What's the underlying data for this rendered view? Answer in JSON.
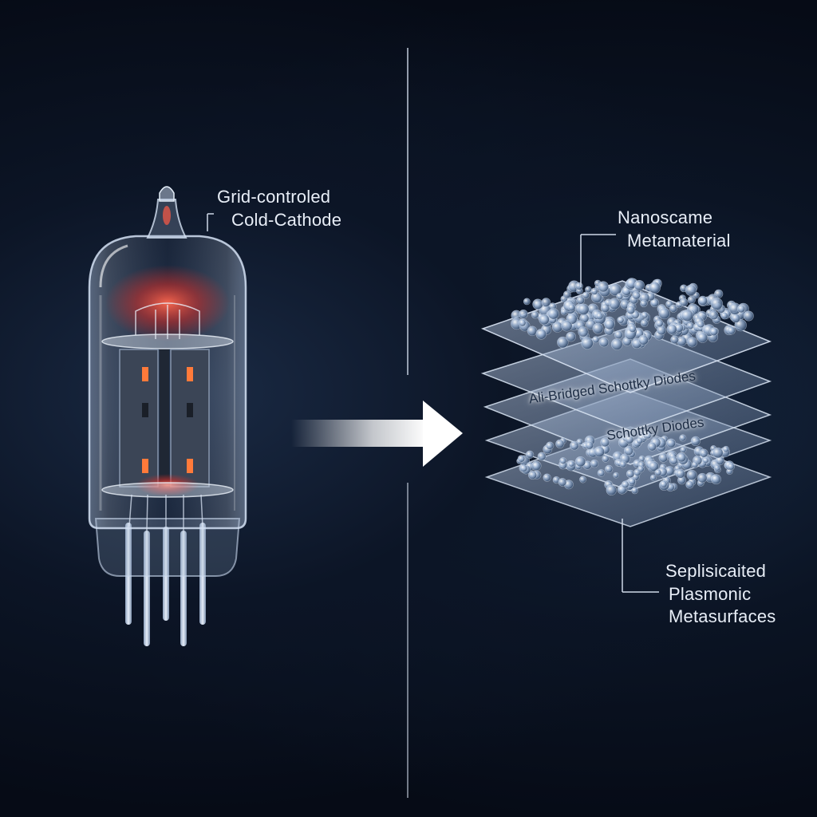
{
  "left_component": {
    "label_line1": "Grid-controled",
    "label_line2": "Cold-Cathode"
  },
  "right_component": {
    "top_label_line1": "Nanoscame",
    "top_label_line2": "Metamaterial",
    "layer_label_1": "Ali-Bridged Schottky Diodes",
    "layer_label_2": "Schottky Diodes",
    "bottom_label_line1": "Seplisicaited",
    "bottom_label_line2": "Plasmonic",
    "bottom_label_line3": "Metasurfaces"
  },
  "colors": {
    "background": "#060b16",
    "glow": "#ff4a3a",
    "glass": "#c9d8ee",
    "text": "#e8eef7",
    "arrow": "#ffffff"
  }
}
